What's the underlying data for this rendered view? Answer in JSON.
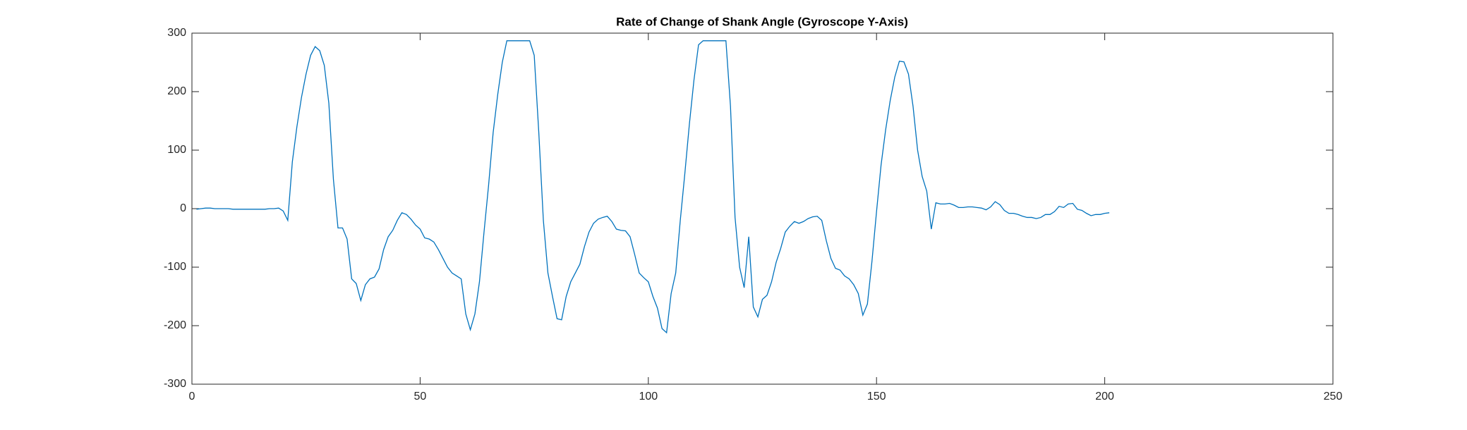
{
  "chart_data": {
    "type": "line",
    "title": "Rate of Change of Shank Angle (Gyroscope Y-Axis)",
    "x": [
      1,
      2,
      3,
      4,
      5,
      6,
      7,
      8,
      9,
      10,
      11,
      12,
      13,
      14,
      15,
      16,
      17,
      18,
      19,
      20,
      21,
      22,
      23,
      24,
      25,
      26,
      27,
      28,
      29,
      30,
      31,
      32,
      33,
      34,
      35,
      36,
      37,
      38,
      39,
      40,
      41,
      42,
      43,
      44,
      45,
      46,
      47,
      48,
      49,
      50,
      51,
      52,
      53,
      54,
      55,
      56,
      57,
      58,
      59,
      60,
      61,
      62,
      63,
      64,
      65,
      66,
      67,
      68,
      69,
      70,
      71,
      72,
      73,
      74,
      75,
      76,
      77,
      78,
      79,
      80,
      81,
      82,
      83,
      84,
      85,
      86,
      87,
      88,
      89,
      90,
      91,
      92,
      93,
      94,
      95,
      96,
      97,
      98,
      99,
      100,
      101,
      102,
      103,
      104,
      105,
      106,
      107,
      108,
      109,
      110,
      111,
      112,
      113,
      114,
      115,
      116,
      117,
      118,
      119,
      120,
      121,
      122,
      123,
      124,
      125,
      126,
      127,
      128,
      129,
      130,
      131,
      132,
      133,
      134,
      135,
      136,
      137,
      138,
      139,
      140,
      141,
      142,
      143,
      144,
      145,
      146,
      147,
      148,
      149,
      150,
      151,
      152,
      153,
      154,
      155,
      156,
      157,
      158,
      159,
      160,
      161,
      162,
      163,
      164,
      165,
      166,
      167,
      168,
      169,
      170,
      171,
      172,
      173,
      174,
      175,
      176,
      177,
      178,
      179,
      180,
      181,
      182,
      183,
      184,
      185,
      186,
      187,
      188,
      189,
      190,
      191,
      192,
      193,
      194,
      195,
      196,
      197,
      198,
      199,
      200,
      201
    ],
    "series": [
      {
        "color": "#0072bd",
        "values": [
          -1,
          0,
          1,
          1,
          0,
          0,
          0,
          0,
          -1,
          -1,
          -1,
          -1,
          -1,
          -1,
          -1,
          -1,
          0,
          0,
          1,
          -4,
          -20,
          80,
          140,
          190,
          230,
          262,
          277,
          270,
          245,
          180,
          50,
          -33,
          -33,
          -52,
          -120,
          -128,
          -157,
          -130,
          -120,
          -117,
          -103,
          -70,
          -48,
          -37,
          -20,
          -7,
          -10,
          -18,
          -28,
          -35,
          -50,
          -52,
          -57,
          -70,
          -85,
          -100,
          -110,
          -115,
          -120,
          -180,
          -207,
          -180,
          -125,
          -40,
          40,
          130,
          195,
          250,
          287,
          287,
          287,
          287,
          287,
          287,
          262,
          130,
          -20,
          -110,
          -150,
          -188,
          -190,
          -150,
          -125,
          -110,
          -95,
          -65,
          -40,
          -25,
          -18,
          -15,
          -13,
          -22,
          -35,
          -37,
          -38,
          -48,
          -78,
          -110,
          -118,
          -125,
          -150,
          -170,
          -205,
          -212,
          -145,
          -110,
          -20,
          60,
          145,
          220,
          280,
          287,
          287,
          287,
          287,
          287,
          287,
          175,
          -15,
          -100,
          -135,
          -48,
          -168,
          -185,
          -155,
          -148,
          -125,
          -92,
          -68,
          -40,
          -30,
          -22,
          -25,
          -22,
          -17,
          -14,
          -13,
          -20,
          -55,
          -85,
          -102,
          -105,
          -115,
          -120,
          -130,
          -145,
          -182,
          -163,
          -90,
          -5,
          75,
          135,
          185,
          225,
          252,
          251,
          230,
          175,
          100,
          55,
          30,
          -35,
          10,
          8,
          8,
          9,
          6,
          2,
          2,
          3,
          3,
          2,
          1,
          -2,
          3,
          12,
          7,
          -3,
          -8,
          -8,
          -10,
          -13,
          -15,
          -15,
          -17,
          -15,
          -10,
          -10,
          -5,
          4,
          2,
          8,
          9,
          -1,
          -3,
          -8,
          -12,
          -10,
          -10,
          -8,
          -7
        ]
      }
    ],
    "xlim": [
      0,
      250
    ],
    "xticks": [
      0,
      50,
      100,
      150,
      200,
      250
    ],
    "ylim": [
      -300,
      300
    ],
    "yticks": [
      -300,
      -200,
      -100,
      0,
      100,
      200,
      300
    ]
  }
}
